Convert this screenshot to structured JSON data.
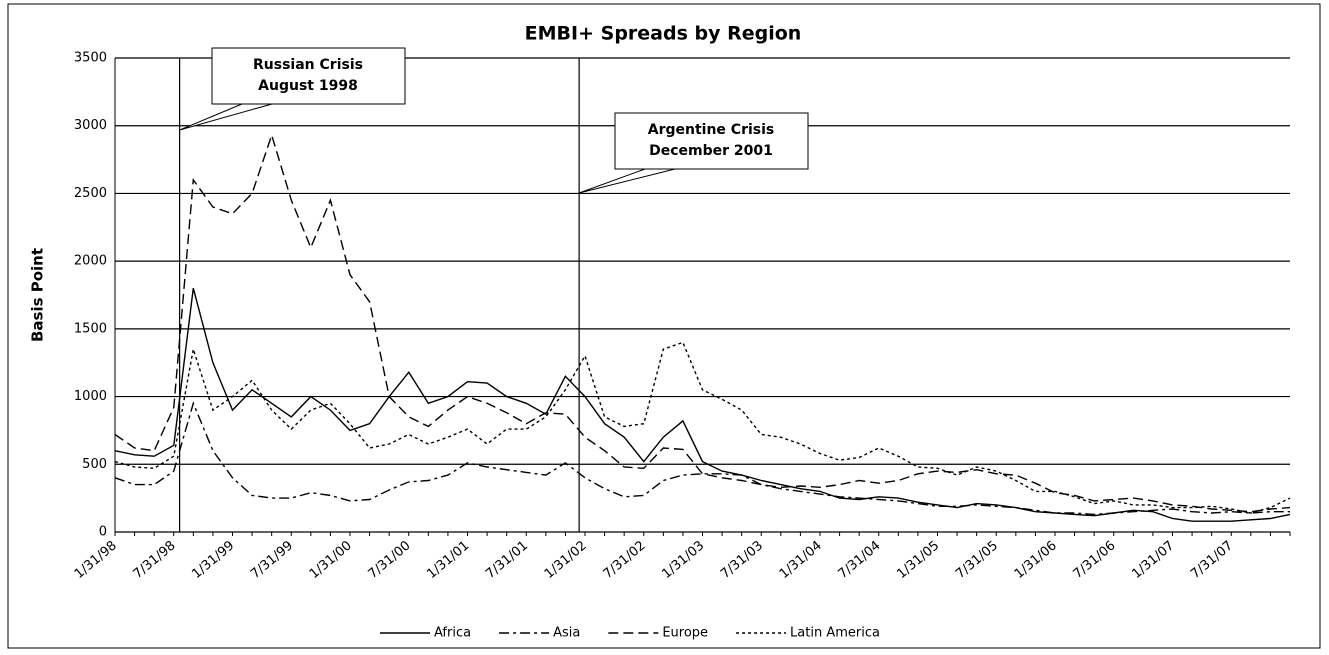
{
  "chart_data": {
    "type": "line",
    "title": "EMBI+ Spreads by Region",
    "y_label": "Basis Point",
    "categories": [
      "1/31/98",
      null,
      null,
      "7/31/98",
      null,
      null,
      "1/31/99",
      null,
      null,
      "7/31/99",
      null,
      null,
      "1/31/00",
      null,
      null,
      "7/31/00",
      null,
      null,
      "1/31/01",
      null,
      null,
      "7/31/01",
      null,
      null,
      "1/31/02",
      null,
      null,
      "7/31/02",
      null,
      null,
      "1/31/03",
      null,
      null,
      "7/31/03",
      null,
      null,
      "1/31/04",
      null,
      null,
      "7/31/04",
      null,
      null,
      "1/31/05",
      null,
      null,
      "7/31/05",
      null,
      null,
      "1/31/06",
      null,
      null,
      "7/31/06",
      null,
      null,
      "1/31/07",
      null,
      null,
      "7/31/07",
      null,
      null,
      null
    ],
    "series": [
      {
        "name": "Africa",
        "color": "#000000",
        "dash": "solid",
        "values": [
          600,
          570,
          560,
          640,
          1800,
          1250,
          900,
          1050,
          950,
          850,
          1000,
          900,
          750,
          800,
          1000,
          1180,
          950,
          1000,
          1110,
          1100,
          1000,
          950,
          870,
          1150,
          1000,
          800,
          700,
          520,
          700,
          820,
          520,
          450,
          420,
          380,
          350,
          320,
          300,
          250,
          240,
          260,
          250,
          220,
          200,
          180,
          210,
          200,
          180,
          150,
          140,
          130,
          120,
          140,
          160,
          150,
          100,
          80,
          80,
          80,
          90,
          100,
          130
        ]
      },
      {
        "name": "Asia",
        "color": "#000000",
        "dash": "dashdot",
        "values": [
          400,
          350,
          350,
          450,
          950,
          600,
          400,
          270,
          250,
          250,
          290,
          270,
          230,
          240,
          310,
          370,
          380,
          420,
          510,
          480,
          460,
          440,
          420,
          510,
          400,
          320,
          260,
          270,
          380,
          420,
          430,
          430,
          420,
          350,
          320,
          300,
          280,
          260,
          250,
          240,
          230,
          210,
          190,
          190,
          200,
          190,
          180,
          160,
          140,
          140,
          130,
          140,
          150,
          160,
          170,
          150,
          140,
          150,
          140,
          150,
          150
        ]
      },
      {
        "name": "Europe",
        "color": "#000000",
        "dash": "dash",
        "values": [
          720,
          620,
          600,
          920,
          2600,
          2400,
          2350,
          2500,
          2930,
          2450,
          2100,
          2450,
          1900,
          1700,
          1000,
          850,
          780,
          900,
          1000,
          950,
          880,
          800,
          880,
          870,
          700,
          600,
          480,
          470,
          620,
          610,
          430,
          400,
          380,
          350,
          330,
          340,
          330,
          350,
          380,
          360,
          380,
          430,
          450,
          440,
          460,
          430,
          420,
          360,
          290,
          270,
          230,
          240,
          250,
          230,
          200,
          190,
          170,
          160,
          150,
          170,
          180
        ]
      },
      {
        "name": "Latin America",
        "color": "#000000",
        "dash": "dot",
        "values": [
          520,
          480,
          470,
          560,
          1350,
          900,
          1000,
          1120,
          900,
          760,
          900,
          950,
          800,
          620,
          650,
          720,
          650,
          700,
          760,
          650,
          760,
          760,
          850,
          1050,
          1300,
          850,
          780,
          800,
          1350,
          1400,
          1050,
          980,
          900,
          720,
          700,
          650,
          580,
          530,
          550,
          620,
          560,
          480,
          470,
          420,
          480,
          450,
          380,
          300,
          300,
          260,
          210,
          230,
          200,
          200,
          180,
          180,
          190,
          170,
          140,
          180,
          250
        ]
      }
    ],
    "ylim": [
      0,
      3500
    ],
    "yticks": [
      0,
      500,
      1000,
      1500,
      2000,
      2500,
      3000,
      3500
    ],
    "grid": true,
    "legend": "bottom",
    "annotations": [
      [
        "Russian Crisis",
        "August 1998"
      ],
      [
        "Argentine Crisis",
        "December 2001"
      ]
    ]
  }
}
